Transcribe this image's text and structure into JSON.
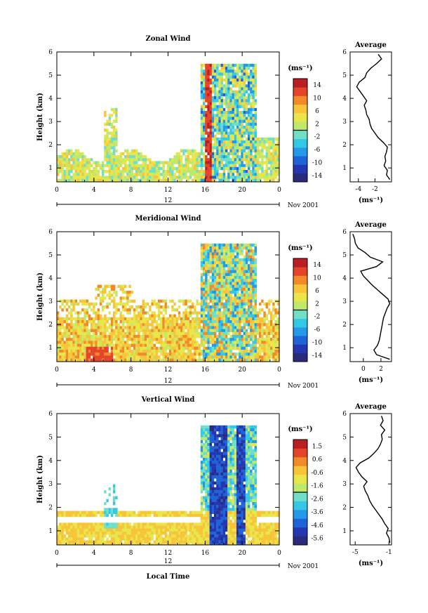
{
  "chart_data": [
    {
      "type": "heatmap",
      "title": "Zonal Wind",
      "ylabel": "Height (km)",
      "y_ticks": [
        "1",
        "2",
        "3",
        "4",
        "5",
        "6"
      ],
      "ylim": [
        0.4,
        6
      ],
      "x_ticks": [
        "0",
        "4",
        "8",
        "12",
        "16",
        "20",
        "0"
      ],
      "xlim": [
        0,
        24
      ],
      "day_marker": "12",
      "date_label": "Nov 2001",
      "units_label": "(ms⁻¹)",
      "colorbar_ticks": [
        "14",
        "10",
        "6",
        "2",
        "-2",
        "-6",
        "-10",
        "-14"
      ],
      "colorbar_range": [
        -16,
        16
      ],
      "average": {
        "title": "Average",
        "x_ticks": [
          "-4",
          "-2"
        ],
        "xlim": [
          -5,
          0
        ],
        "xlabel": "(ms⁻¹)",
        "y_ticks": [
          "1",
          "2",
          "3",
          "4",
          "5",
          "6"
        ],
        "height": [
          0.5,
          0.7,
          0.9,
          1.1,
          1.3,
          1.5,
          1.7,
          1.9,
          2.1,
          2.3,
          2.5,
          2.7,
          2.9,
          3.1,
          3.3,
          3.5,
          3.7,
          3.9,
          4.1,
          4.3,
          4.5,
          4.7,
          4.9,
          5.1,
          5.3,
          5.5,
          5.7,
          5.9
        ],
        "value": [
          -0.2,
          -0.6,
          -0.5,
          -0.9,
          -0.7,
          -0.8,
          -0.6,
          -0.5,
          -1.0,
          -1.6,
          -2.0,
          -2.4,
          -2.6,
          -2.7,
          -3.0,
          -3.1,
          -3.3,
          -3.0,
          -3.4,
          -3.8,
          -4.2,
          -3.9,
          -3.2,
          -3.0,
          -2.5,
          -1.8,
          -1.2,
          -1.6
        ]
      }
    },
    {
      "type": "heatmap",
      "title": "Meridional Wind",
      "ylabel": "Height (km)",
      "y_ticks": [
        "1",
        "2",
        "3",
        "4",
        "5",
        "6"
      ],
      "ylim": [
        0.4,
        6
      ],
      "x_ticks": [
        "0",
        "4",
        "8",
        "12",
        "16",
        "20",
        "0"
      ],
      "xlim": [
        0,
        24
      ],
      "day_marker": "12",
      "date_label": "Nov 2001",
      "units_label": "(ms⁻¹)",
      "colorbar_ticks": [
        "14",
        "10",
        "6",
        "2",
        "-2",
        "-6",
        "-10",
        "-14"
      ],
      "colorbar_range": [
        -16,
        16
      ],
      "average": {
        "title": "Average",
        "x_ticks": [
          "0",
          "2"
        ],
        "xlim": [
          -1.5,
          3.2
        ],
        "xlabel": "(ms⁻¹)",
        "y_ticks": [
          "1",
          "2",
          "3",
          "4",
          "5",
          "6"
        ],
        "height": [
          0.5,
          0.7,
          0.9,
          1.1,
          1.3,
          1.5,
          1.7,
          1.9,
          2.1,
          2.3,
          2.5,
          2.7,
          2.9,
          3.1,
          3.3,
          3.5,
          3.7,
          3.9,
          4.1,
          4.3,
          4.5,
          4.7,
          4.9,
          5.1,
          5.3,
          5.5,
          5.7,
          5.9
        ],
        "value": [
          3.0,
          1.5,
          1.2,
          1.6,
          1.8,
          1.9,
          2.0,
          2.1,
          2.2,
          2.3,
          2.5,
          2.7,
          3.0,
          2.8,
          2.2,
          1.6,
          1.0,
          0.5,
          0.0,
          -0.3,
          1.5,
          2.2,
          0.8,
          0.2,
          -0.6,
          -0.9,
          -1.0,
          -1.2
        ]
      }
    },
    {
      "type": "heatmap",
      "title": "Vertical Wind",
      "ylabel": "Height (km)",
      "xlabel": "Local Time",
      "y_ticks": [
        "1",
        "2",
        "3",
        "4",
        "5",
        "6"
      ],
      "ylim": [
        0.4,
        6
      ],
      "x_ticks": [
        "0",
        "4",
        "8",
        "12",
        "16",
        "20",
        "0"
      ],
      "xlim": [
        0,
        24
      ],
      "day_marker": "12",
      "date_label": "Nov 2001",
      "units_label": "(ms⁻¹)",
      "colorbar_ticks": [
        "1.5",
        "0.6",
        "-0.6",
        "-1.6",
        "-2.6",
        "-3.6",
        "-4.6",
        "-5.6"
      ],
      "colorbar_range": [
        -6.1,
        2.0
      ],
      "average": {
        "title": "Average",
        "x_ticks": [
          "-5",
          "-1"
        ],
        "xlim": [
          -5.6,
          -0.7
        ],
        "xlabel": "(ms⁻¹)",
        "y_ticks": [
          "1",
          "2",
          "3",
          "4",
          "5",
          "6"
        ],
        "height": [
          0.5,
          0.7,
          0.9,
          1.1,
          1.3,
          1.5,
          1.7,
          1.9,
          2.1,
          2.3,
          2.5,
          2.7,
          2.9,
          3.1,
          3.3,
          3.5,
          3.7,
          3.9,
          4.1,
          4.3,
          4.5,
          4.7,
          4.9,
          5.1,
          5.3,
          5.5,
          5.7,
          5.9
        ],
        "value": [
          -0.9,
          -1.0,
          -1.3,
          -1.1,
          -1.5,
          -1.8,
          -2.2,
          -2.6,
          -3.0,
          -3.3,
          -3.5,
          -3.8,
          -4.0,
          -3.6,
          -4.2,
          -4.6,
          -4.9,
          -4.4,
          -3.4,
          -2.8,
          -2.3,
          -2.0,
          -1.8,
          -1.9,
          -1.5,
          -2.0,
          -1.7,
          -1.9
        ]
      }
    }
  ]
}
